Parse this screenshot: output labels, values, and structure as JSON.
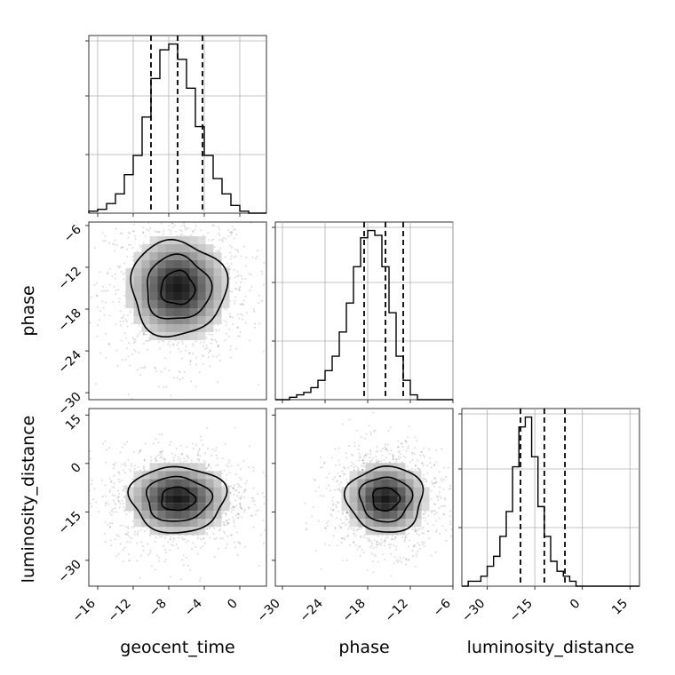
{
  "chart_data": {
    "type": "corner",
    "grid": true,
    "parameters": [
      {
        "name": "geocent_time",
        "range": [
          -17,
          3
        ],
        "ticks": [
          -16,
          -12,
          -8,
          -4,
          0
        ],
        "quantiles": [
          -10,
          -7,
          -4.2
        ],
        "hist": {
          "edges_start": -17,
          "bin_width": 1,
          "counts": [
            1,
            2,
            5,
            10,
            20,
            30,
            50,
            70,
            85,
            88,
            80,
            65,
            45,
            30,
            18,
            10,
            4,
            1,
            0,
            0
          ]
        }
      },
      {
        "name": "phase",
        "range": [
          -31,
          -6
        ],
        "ticks": [
          -30,
          -24,
          -18,
          -12,
          -6
        ],
        "quantiles": [
          -18.5,
          -15.5,
          -13
        ],
        "hist": {
          "edges_start": -31,
          "bin_width": 1,
          "counts": [
            0,
            0,
            1,
            2,
            3,
            5,
            8,
            12,
            18,
            28,
            40,
            55,
            67,
            70,
            68,
            55,
            36,
            18,
            8,
            2,
            0,
            0,
            0,
            0,
            0
          ]
        }
      },
      {
        "name": "luminosity_distance",
        "range": [
          -38,
          18
        ],
        "ticks": [
          -30,
          -15,
          0,
          15
        ],
        "quantiles": [
          -19.5,
          -12,
          -5.5
        ],
        "hist": {
          "edges_start": -38,
          "bin_width": 2,
          "counts": [
            0,
            1,
            1,
            2,
            4,
            6,
            10,
            15,
            24,
            32,
            34,
            26,
            16,
            10,
            5,
            3,
            2,
            1,
            0,
            0,
            0,
            0,
            0,
            0,
            0,
            0,
            0,
            0
          ]
        }
      }
    ],
    "pairs": [
      {
        "x": "geocent_time",
        "y": "phase",
        "ylim": [
          -31,
          -5.5
        ],
        "yticks": [
          -6,
          -12,
          -18,
          -24,
          -30
        ],
        "center": [
          -7,
          -15
        ],
        "sigma": [
          3,
          4
        ]
      },
      {
        "x": "geocent_time",
        "y": "luminosity_distance",
        "ylim": [
          -38,
          17
        ],
        "yticks": [
          15,
          0,
          -15,
          -30
        ],
        "center": [
          -7,
          -11
        ],
        "sigma": [
          3,
          6
        ]
      },
      {
        "x": "phase",
        "y": "luminosity_distance",
        "ylim": [
          -38,
          17
        ],
        "yticks": [
          15,
          0,
          -15,
          -30
        ],
        "center": [
          -15.5,
          -11
        ],
        "sigma": [
          3,
          6
        ]
      }
    ],
    "axis_labels": {
      "x": [
        "geocent_time",
        "phase",
        "luminosity_distance"
      ],
      "y": [
        "phase",
        "luminosity_distance"
      ]
    }
  }
}
